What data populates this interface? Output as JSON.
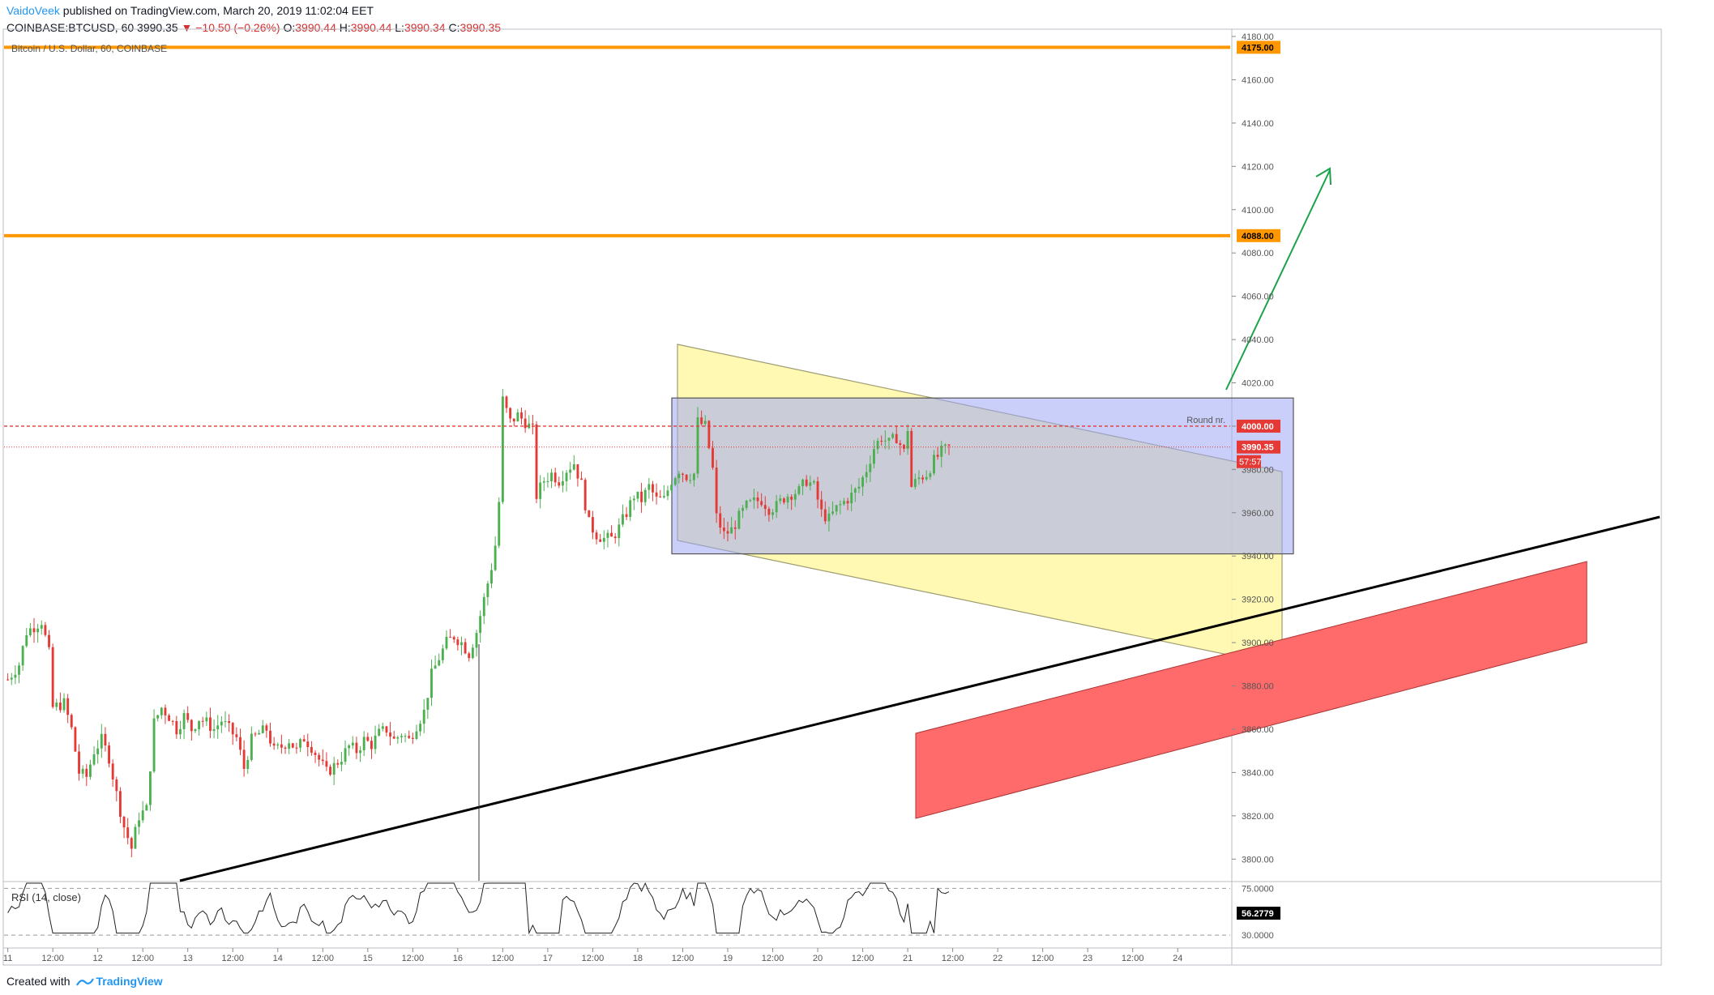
{
  "header": {
    "author": "VaidoVeek",
    "published": "published on TradingView.com, March 20, 2019 11:02:04 EET",
    "symbol": "COINBASE:BTCUSD, 60",
    "last": "3990.35",
    "change": "−10.50 (−0.26%)",
    "o_label": "O:",
    "o": "3990.44",
    "h_label": "H:",
    "h": "3990.44",
    "l_label": "L:",
    "l": "3990.34",
    "c_label": "C:",
    "c": "3990.35"
  },
  "footer": {
    "created_with": "Created with",
    "brand": "TradingView"
  },
  "colors": {
    "up": "#26a69a",
    "up_fill": "#4caf50",
    "down": "#e53935",
    "orange": "#ff9800",
    "red_dash": "#e53935",
    "trend": "#000000",
    "arrow": "#1aa34a",
    "yellow": "#fff8a6",
    "blue": "#9fa8f5",
    "red_zone": "#ff6b6b"
  },
  "chart_data": {
    "type": "candlestick",
    "title": "Bitcoin / U.S. Dollar, 60, COINBASE",
    "y_axis": {
      "ticks": [
        3800,
        3820,
        3840,
        3860,
        3880,
        3900,
        3920,
        3940,
        3960,
        3980,
        4000,
        4020,
        4040,
        4060,
        4080,
        4100,
        4120,
        4140,
        4160,
        4180
      ],
      "tick_labels": [
        "3800.00",
        "3820.00",
        "3840.00",
        "3860.00",
        "3880.00",
        "3900.00",
        "3920.00",
        "3940.00",
        "3960.00",
        "3980.00",
        "4000.00",
        "4020.00",
        "4040.00",
        "4060.00",
        "4080.00",
        "4100.00",
        "4120.00",
        "4140.00",
        "4160.00",
        "4180.00"
      ],
      "range": [
        3790,
        4183
      ]
    },
    "x_axis": {
      "labels": [
        {
          "t": 0,
          "text": "11"
        },
        {
          "t": 12,
          "text": "12:00"
        },
        {
          "t": 24,
          "text": "12"
        },
        {
          "t": 36,
          "text": "12:00"
        },
        {
          "t": 48,
          "text": "13"
        },
        {
          "t": 60,
          "text": "12:00"
        },
        {
          "t": 72,
          "text": "14"
        },
        {
          "t": 84,
          "text": "12:00"
        },
        {
          "t": 96,
          "text": "15"
        },
        {
          "t": 108,
          "text": "12:00"
        },
        {
          "t": 120,
          "text": "16"
        },
        {
          "t": 132,
          "text": "12:00"
        },
        {
          "t": 144,
          "text": "17"
        },
        {
          "t": 156,
          "text": "12:00"
        },
        {
          "t": 168,
          "text": "18"
        },
        {
          "t": 180,
          "text": "12:00"
        },
        {
          "t": 192,
          "text": "19"
        },
        {
          "t": 204,
          "text": "12:00"
        },
        {
          "t": 216,
          "text": "20"
        },
        {
          "t": 228,
          "text": "12:00"
        },
        {
          "t": 240,
          "text": "21"
        },
        {
          "t": 252,
          "text": "12:00"
        },
        {
          "t": 264,
          "text": "22"
        },
        {
          "t": 276,
          "text": "12:00"
        },
        {
          "t": 288,
          "text": "23"
        },
        {
          "t": 300,
          "text": "12:00"
        },
        {
          "t": 312,
          "text": "24"
        }
      ],
      "range": [
        -1,
        326
      ]
    },
    "price_path": [
      [
        0,
        3883
      ],
      [
        3,
        3890
      ],
      [
        5,
        3905
      ],
      [
        9,
        3910
      ],
      [
        11,
        3895
      ],
      [
        12,
        3870
      ],
      [
        15,
        3872
      ],
      [
        17,
        3860
      ],
      [
        19,
        3840
      ],
      [
        21,
        3838
      ],
      [
        23,
        3850
      ],
      [
        25,
        3855
      ],
      [
        27,
        3847
      ],
      [
        29,
        3830
      ],
      [
        31,
        3815
      ],
      [
        33,
        3805
      ],
      [
        35,
        3820
      ],
      [
        37,
        3823
      ],
      [
        39,
        3863
      ],
      [
        41,
        3870
      ],
      [
        43,
        3866
      ],
      [
        45,
        3860
      ],
      [
        47,
        3866
      ],
      [
        49,
        3860
      ],
      [
        51,
        3865
      ],
      [
        53,
        3863
      ],
      [
        55,
        3860
      ],
      [
        57,
        3864
      ],
      [
        59,
        3860
      ],
      [
        61,
        3856
      ],
      [
        63,
        3842
      ],
      [
        65,
        3855
      ],
      [
        67,
        3858
      ],
      [
        69,
        3860
      ],
      [
        71,
        3850
      ],
      [
        73,
        3852
      ],
      [
        75,
        3855
      ],
      [
        77,
        3850
      ],
      [
        79,
        3856
      ],
      [
        81,
        3852
      ],
      [
        83,
        3846
      ],
      [
        85,
        3840
      ],
      [
        87,
        3843
      ],
      [
        89,
        3847
      ],
      [
        91,
        3852
      ],
      [
        93,
        3850
      ],
      [
        95,
        3855
      ],
      [
        97,
        3853
      ],
      [
        99,
        3858
      ],
      [
        101,
        3860
      ],
      [
        103,
        3855
      ],
      [
        105,
        3858
      ],
      [
        107,
        3855
      ],
      [
        109,
        3862
      ],
      [
        111,
        3868
      ],
      [
        113,
        3885
      ],
      [
        115,
        3893
      ],
      [
        117,
        3900
      ],
      [
        119,
        3903
      ],
      [
        121,
        3900
      ],
      [
        123,
        3895
      ],
      [
        125,
        3905
      ],
      [
        127,
        3920
      ],
      [
        129,
        3935
      ],
      [
        130,
        3945
      ],
      [
        131,
        3965
      ],
      [
        132,
        4012
      ],
      [
        134,
        4002
      ],
      [
        136,
        4005
      ],
      [
        138,
        4002
      ],
      [
        140,
        3998
      ],
      [
        141,
        3968
      ],
      [
        143,
        3975
      ],
      [
        145,
        3978
      ],
      [
        147,
        3975
      ],
      [
        149,
        3980
      ],
      [
        151,
        3983
      ],
      [
        153,
        3973
      ],
      [
        155,
        3955
      ],
      [
        157,
        3950
      ],
      [
        159,
        3948
      ],
      [
        161,
        3948
      ],
      [
        163,
        3953
      ],
      [
        165,
        3960
      ],
      [
        167,
        3968
      ],
      [
        169,
        3966
      ],
      [
        171,
        3972
      ],
      [
        173,
        3966
      ],
      [
        175,
        3966
      ],
      [
        177,
        3975
      ],
      [
        179,
        3980
      ],
      [
        181,
        3977
      ],
      [
        183,
        3978
      ],
      [
        184,
        4002
      ],
      [
        186,
        4000
      ],
      [
        188,
        3980
      ],
      [
        189,
        3958
      ],
      [
        191,
        3950
      ],
      [
        193,
        3952
      ],
      [
        195,
        3958
      ],
      [
        197,
        3963
      ],
      [
        199,
        3965
      ],
      [
        201,
        3966
      ],
      [
        203,
        3962
      ],
      [
        205,
        3963
      ],
      [
        207,
        3967
      ],
      [
        209,
        3969
      ],
      [
        211,
        3970
      ],
      [
        213,
        3975
      ],
      [
        215,
        3972
      ],
      [
        217,
        3960
      ],
      [
        219,
        3957
      ],
      [
        221,
        3962
      ],
      [
        223,
        3965
      ],
      [
        225,
        3968
      ],
      [
        227,
        3972
      ],
      [
        229,
        3980
      ],
      [
        231,
        3990
      ],
      [
        233,
        3995
      ],
      [
        235,
        3992
      ],
      [
        237,
        3995
      ],
      [
        239,
        3988
      ],
      [
        240,
        3999
      ],
      [
        241,
        3972
      ],
      [
        243,
        3976
      ],
      [
        245,
        3978
      ],
      [
        247,
        3984
      ],
      [
        249,
        3988
      ],
      [
        251,
        3990
      ]
    ],
    "horizontal_levels": [
      {
        "value": 4175,
        "label": "4175.00",
        "color": "orange"
      },
      {
        "value": 4088,
        "label": "4088.00",
        "color": "orange"
      },
      {
        "value": 4000,
        "label": "4000.00",
        "color": "red_dash",
        "note": "Round nr."
      },
      {
        "value": 3990.35,
        "label": "3990.35",
        "color": "red_dot",
        "countdown": "57:57"
      }
    ],
    "indicator": {
      "name": "RSI (14, close)",
      "value_label": "56.2779",
      "upper_label": "75.0000",
      "lower_label": "30.0000",
      "range": [
        20,
        80
      ],
      "bands": [
        75,
        30
      ]
    }
  }
}
